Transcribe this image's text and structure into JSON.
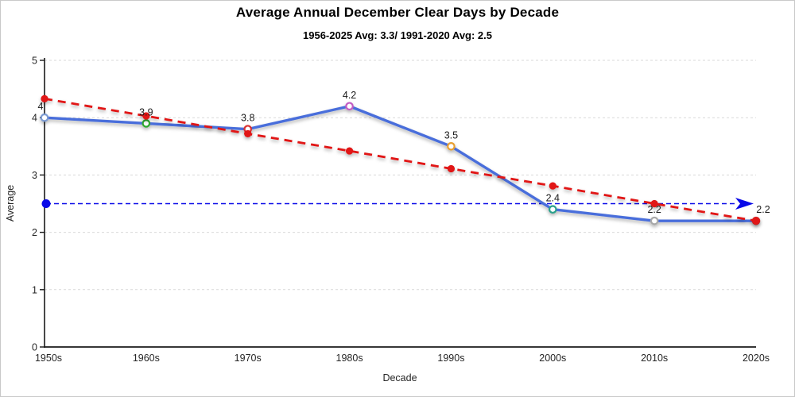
{
  "chart_data": {
    "type": "line",
    "title": "Average Annual December Clear Days by Decade",
    "subtitle": "1956-2025 Avg: 3.3/ 1991-2020 Avg: 2.5",
    "xlabel": "Decade",
    "ylabel": "Average",
    "categories": [
      "1950s",
      "1960s",
      "1970s",
      "1980s",
      "1990s",
      "2000s",
      "2010s",
      "2020s"
    ],
    "ylim": [
      0,
      5
    ],
    "yticks": [
      0,
      1,
      2,
      3,
      4,
      5
    ],
    "grid": "horizontal-dashed",
    "legend_position": "none",
    "colors": {
      "main_line": "#4a6edb",
      "trend_line": "#e11212",
      "reference_line": "#0909e8",
      "gridline": "#d9d9d9",
      "axis": "#1a1a1a",
      "label_text": "#1a1a1a"
    },
    "series": [
      {
        "name": "december-clear-days",
        "style": "solid",
        "color": "#4a6edb",
        "values": [
          4,
          3.9,
          3.8,
          4.2,
          3.5,
          2.4,
          2.2,
          2.2
        ],
        "point_labels": [
          "4",
          "3.9",
          "3.8",
          "4.2",
          "3.5",
          "2.4",
          "2.2",
          "2.2"
        ],
        "marker": "open-circle",
        "marker_colors": [
          "#7b9bd2",
          "#2ea82e",
          "#d93030",
          "#c35bc3",
          "#e8a030",
          "#2aa08c",
          "#a8a8a8",
          "#d93030"
        ]
      },
      {
        "name": "linear-trend-1956-2025",
        "style": "dashed",
        "color": "#e11212",
        "marker": "filled-circle",
        "values": [
          4.33,
          4.03,
          3.72,
          3.42,
          3.11,
          2.81,
          2.5,
          2.2
        ]
      },
      {
        "name": "1991-2020-average-reference",
        "style": "dashed-arrow",
        "color": "#0909e8",
        "value": 2.5
      }
    ]
  }
}
